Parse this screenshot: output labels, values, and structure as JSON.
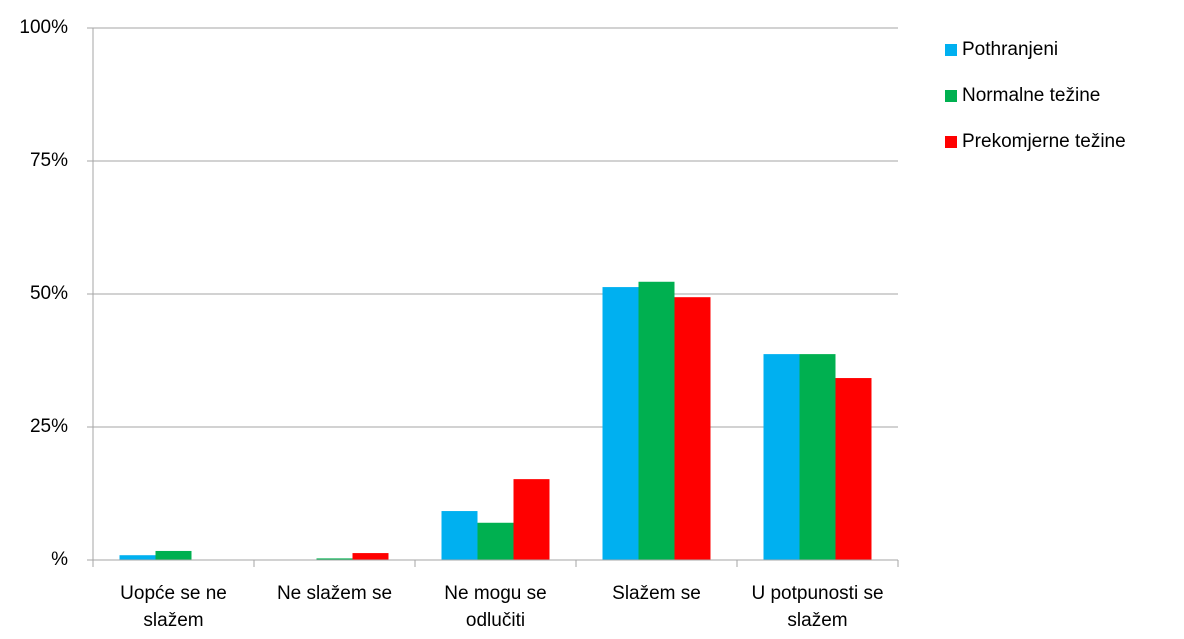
{
  "chart_data": {
    "type": "bar",
    "categories": [
      "Uopće se ne slažem",
      "Ne slažem se",
      "Ne mogu se odlučiti",
      "Slažem se",
      "U potpunosti se slažem"
    ],
    "series": [
      {
        "name": "Pothranjeni",
        "color": "#00b0f0",
        "values": [
          0.9,
          0,
          9.2,
          51.3,
          38.7
        ]
      },
      {
        "name": "Normalne težine",
        "color": "#00b050",
        "values": [
          1.7,
          0.3,
          7.0,
          52.3,
          38.7
        ]
      },
      {
        "name": "Prekomjerne težine",
        "color": "#ff0000",
        "values": [
          0,
          1.3,
          15.2,
          49.4,
          34.2
        ]
      }
    ],
    "ylim": [
      0,
      100
    ],
    "yticks": [
      {
        "value": 0,
        "label": "%"
      },
      {
        "value": 25,
        "label": "25%"
      },
      {
        "value": 50,
        "label": "50%"
      },
      {
        "value": 75,
        "label": "75%"
      },
      {
        "value": 100,
        "label": "100%"
      }
    ],
    "grid": true,
    "legend": "right"
  }
}
